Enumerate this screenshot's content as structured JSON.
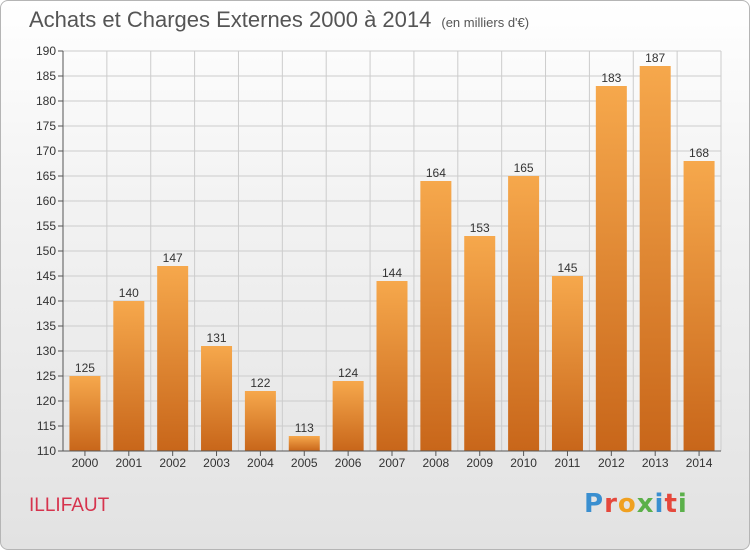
{
  "header": {
    "title": "Achats et Charges Externes 2000 à 2014",
    "subtitle": "(en milliers d'€)"
  },
  "footer": {
    "place": "ILLIFAUT",
    "logo_text": "Proxiti",
    "logo_colors": [
      "#3a8fd0",
      "#e5483c",
      "#f0a020",
      "#5bb04a",
      "#3a8fd0",
      "#e5483c",
      "#5bb04a"
    ]
  },
  "colors": {
    "bar_light": "#f6a84c",
    "bar_dark": "#c8661a",
    "grid": "#cccccc",
    "axis_text": "#333333"
  },
  "chart_data": {
    "type": "bar",
    "categories": [
      "2000",
      "2001",
      "2002",
      "2003",
      "2004",
      "2005",
      "2006",
      "2007",
      "2008",
      "2009",
      "2010",
      "2011",
      "2012",
      "2013",
      "2014"
    ],
    "values": [
      125,
      140,
      147,
      131,
      122,
      113,
      124,
      144,
      164,
      153,
      165,
      145,
      183,
      187,
      168
    ],
    "ylim": [
      110,
      190
    ],
    "yticks": [
      110,
      115,
      120,
      125,
      130,
      135,
      140,
      145,
      150,
      155,
      160,
      165,
      170,
      175,
      180,
      185,
      190
    ],
    "grid": true,
    "legend": "none"
  }
}
